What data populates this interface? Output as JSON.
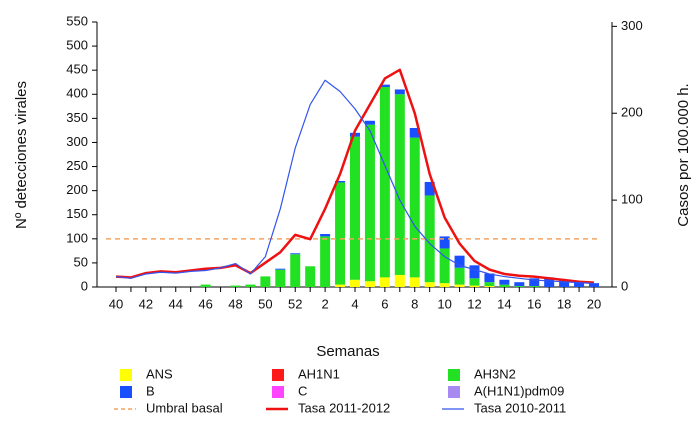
{
  "chart_data": {
    "type": "bar",
    "stacked": true,
    "x_label": "Semanas",
    "y_label": "Nº detecciones virales",
    "y2_label": "Casos por 100.000 h.",
    "categories": [
      "40",
      null,
      "42",
      null,
      "44",
      null,
      "46",
      null,
      "48",
      null,
      "50",
      null,
      "52",
      null,
      "2",
      null,
      "4",
      null,
      "6",
      null,
      "8",
      null,
      "10",
      null,
      "12",
      null,
      "14",
      null,
      "16",
      null,
      "18",
      null,
      "20"
    ],
    "ylim": [
      0,
      550
    ],
    "yticks": [
      0,
      50,
      100,
      150,
      200,
      250,
      300,
      350,
      400,
      450,
      500,
      550
    ],
    "y2lim": [
      0,
      305
    ],
    "y2ticks": [
      0,
      100,
      200,
      300
    ],
    "series": [
      {
        "name": "ANS",
        "type": "bar",
        "color": "#ffff00",
        "values": [
          0,
          0,
          0,
          0,
          0,
          0,
          0,
          0,
          0,
          0,
          0,
          0,
          0,
          0,
          0,
          5,
          15,
          12,
          20,
          25,
          20,
          10,
          8,
          5,
          3,
          2,
          0,
          0,
          0,
          0,
          0,
          0,
          0
        ]
      },
      {
        "name": "AH1N1",
        "type": "bar",
        "color": "#ff1a1a",
        "values": [
          0,
          0,
          0,
          0,
          0,
          0,
          0,
          0,
          0,
          0,
          0,
          0,
          0,
          0,
          0,
          0,
          0,
          0,
          0,
          0,
          0,
          0,
          0,
          0,
          0,
          0,
          0,
          0,
          0,
          0,
          0,
          0,
          0
        ]
      },
      {
        "name": "AH3N2",
        "type": "bar",
        "color": "#22e022",
        "values": [
          0,
          0,
          0,
          0,
          0,
          0,
          5,
          0,
          3,
          5,
          22,
          36,
          68,
          43,
          105,
          212,
          297,
          325,
          395,
          375,
          290,
          180,
          72,
          35,
          15,
          8,
          5,
          2,
          2,
          0,
          0,
          0,
          0
        ]
      },
      {
        "name": "B",
        "type": "bar",
        "color": "#1a4fff",
        "values": [
          0,
          0,
          0,
          0,
          0,
          0,
          0,
          0,
          0,
          0,
          0,
          2,
          2,
          0,
          5,
          3,
          8,
          8,
          5,
          10,
          20,
          28,
          25,
          25,
          27,
          18,
          10,
          8,
          16,
          20,
          15,
          12,
          8
        ]
      },
      {
        "name": "C",
        "type": "bar",
        "color": "#ff44ff",
        "values": [
          0,
          0,
          0,
          0,
          0,
          0,
          0,
          0,
          0,
          0,
          0,
          0,
          0,
          0,
          0,
          0,
          0,
          0,
          0,
          0,
          0,
          0,
          0,
          0,
          0,
          0,
          0,
          0,
          0,
          0,
          0,
          0,
          0
        ]
      },
      {
        "name": "A(H1N1)pdm09",
        "type": "bar",
        "color": "#a98af0",
        "values": [
          0,
          0,
          0,
          0,
          0,
          0,
          0,
          0,
          0,
          0,
          0,
          0,
          0,
          0,
          0,
          0,
          0,
          0,
          0,
          0,
          0,
          0,
          0,
          0,
          0,
          0,
          0,
          0,
          0,
          0,
          0,
          0,
          0
        ]
      },
      {
        "name": "Tasa 2011-2012",
        "type": "line",
        "axis": "y2",
        "color": "#ee1111",
        "width": 2.5,
        "values": [
          12,
          11,
          16,
          18,
          17,
          19,
          21,
          22,
          25,
          16,
          28,
          40,
          60,
          55,
          90,
          130,
          180,
          210,
          240,
          250,
          200,
          130,
          80,
          50,
          30,
          20,
          15,
          13,
          12,
          10,
          8,
          6,
          5
        ]
      },
      {
        "name": "Tasa 2010-2011",
        "type": "line",
        "axis": "y2",
        "color": "#3355ee",
        "width": 1.2,
        "values": [
          12,
          10,
          15,
          17,
          16,
          18,
          19,
          22,
          27,
          15,
          35,
          90,
          160,
          210,
          238,
          225,
          205,
          180,
          140,
          100,
          70,
          50,
          35,
          25,
          20,
          15,
          12,
          10,
          8,
          7,
          6,
          5,
          4
        ]
      }
    ],
    "reference_line": {
      "name": "Umbral basal",
      "value": 100,
      "color": "#f4a460"
    }
  }
}
